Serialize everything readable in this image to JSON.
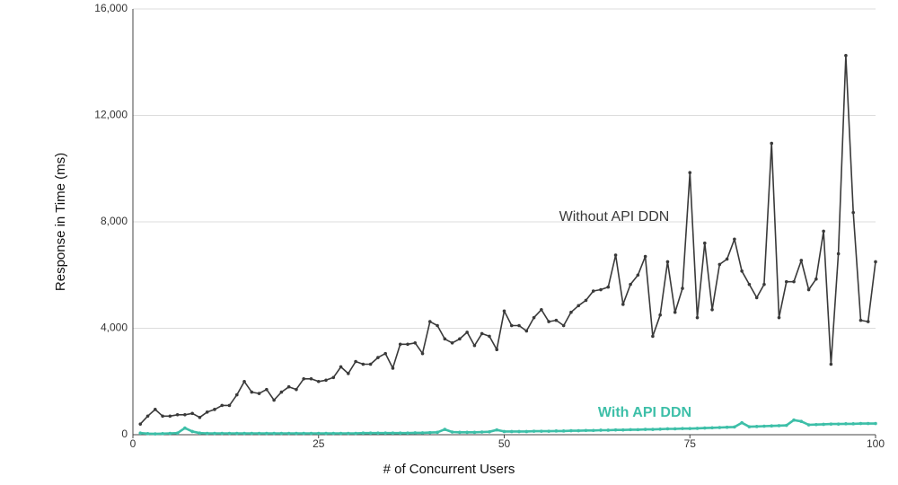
{
  "chart_data": {
    "type": "line",
    "x_label": "# of Concurrent Users",
    "y_label": "Response in Time (ms)",
    "x": [
      1,
      2,
      3,
      4,
      5,
      6,
      7,
      8,
      9,
      10,
      11,
      12,
      13,
      14,
      15,
      16,
      17,
      18,
      19,
      20,
      21,
      22,
      23,
      24,
      25,
      26,
      27,
      28,
      29,
      30,
      31,
      32,
      33,
      34,
      35,
      36,
      37,
      38,
      39,
      40,
      41,
      42,
      43,
      44,
      45,
      46,
      47,
      48,
      49,
      50,
      51,
      52,
      53,
      54,
      55,
      56,
      57,
      58,
      59,
      60,
      61,
      62,
      63,
      64,
      65,
      66,
      67,
      68,
      69,
      70,
      71,
      72,
      73,
      74,
      75,
      76,
      77,
      78,
      79,
      80,
      81,
      82,
      83,
      84,
      85,
      86,
      87,
      88,
      89,
      90,
      91,
      92,
      93,
      94,
      95,
      96,
      97,
      98,
      99,
      100
    ],
    "series": [
      {
        "name": "Without API DDN",
        "color": "#3a3a3a",
        "values": [
          400,
          700,
          950,
          700,
          700,
          750,
          750,
          800,
          650,
          850,
          950,
          1100,
          1100,
          1500,
          2000,
          1600,
          1550,
          1700,
          1300,
          1600,
          1800,
          1700,
          2100,
          2100,
          2000,
          2050,
          2150,
          2550,
          2300,
          2750,
          2650,
          2650,
          2900,
          3050,
          2500,
          3400,
          3400,
          3450,
          3050,
          4250,
          4100,
          3600,
          3450,
          3600,
          3850,
          3350,
          3800,
          3700,
          3200,
          4650,
          4100,
          4100,
          3900,
          4400,
          4700,
          4250,
          4300,
          4100,
          4600,
          4850,
          5050,
          5400,
          5450,
          5550,
          6750,
          4900,
          5650,
          6000,
          6700,
          3700,
          4500,
          6500,
          4600,
          5500,
          9850,
          4400,
          7200,
          4700,
          6400,
          6600,
          7350,
          6150,
          5650,
          5150,
          5650,
          10950,
          4400,
          5750,
          5750,
          6550,
          5450,
          5850,
          7650,
          2650,
          6800,
          14250,
          8350,
          4300,
          4250,
          6500
        ]
      },
      {
        "name": "With API DDN",
        "color": "#3dbfa8",
        "values": [
          60,
          40,
          30,
          40,
          50,
          60,
          250,
          120,
          60,
          50,
          50,
          50,
          50,
          50,
          50,
          50,
          50,
          50,
          50,
          50,
          50,
          50,
          50,
          50,
          50,
          50,
          50,
          50,
          50,
          50,
          60,
          60,
          60,
          60,
          60,
          60,
          60,
          70,
          70,
          80,
          90,
          200,
          100,
          90,
          90,
          90,
          100,
          110,
          180,
          120,
          120,
          120,
          120,
          130,
          130,
          130,
          140,
          140,
          150,
          150,
          160,
          160,
          170,
          170,
          180,
          180,
          190,
          190,
          200,
          200,
          210,
          220,
          220,
          230,
          230,
          240,
          250,
          260,
          270,
          280,
          290,
          450,
          300,
          310,
          320,
          330,
          340,
          350,
          550,
          500,
          370,
          380,
          390,
          400,
          400,
          410,
          410,
          420,
          420,
          420
        ]
      }
    ],
    "xlim": [
      0,
      100
    ],
    "xticks": [
      0,
      25,
      50,
      75,
      100
    ],
    "ylim": [
      0,
      16000
    ],
    "yticks": [
      0,
      {
        "value": 4000,
        "label": "4,000"
      },
      {
        "value": 8000,
        "label": "8,000"
      },
      {
        "value": 12000,
        "label": "12,000"
      },
      {
        "value": 16000,
        "label": "16,000"
      }
    ],
    "grid": true
  }
}
